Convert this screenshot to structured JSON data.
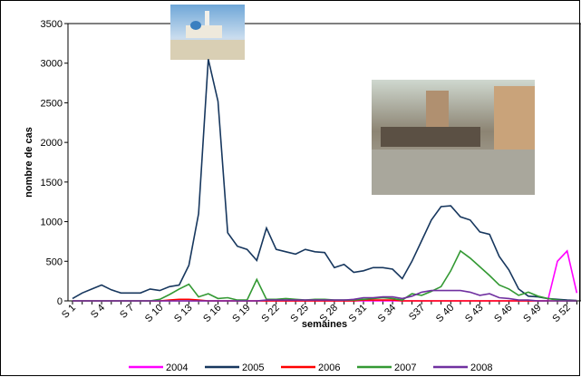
{
  "chart_data": {
    "type": "line",
    "y_label": "nombre de cas",
    "x_label": "semaines",
    "categories": [
      "S 1",
      null,
      null,
      "S 4",
      null,
      null,
      "S 7",
      null,
      null,
      "S 10",
      null,
      null,
      "S 13",
      null,
      null,
      "S 16",
      null,
      null,
      "S 19",
      null,
      null,
      "S 22",
      null,
      null,
      "S 25",
      null,
      null,
      "S 28",
      null,
      null,
      "S 31",
      null,
      null,
      "S 34",
      null,
      null,
      "S37",
      null,
      null,
      "S 40",
      null,
      null,
      "S 43",
      null,
      null,
      "S 46",
      null,
      null,
      "S 49",
      null,
      null,
      "S 52",
      null
    ],
    "ylim": [
      0,
      3500
    ],
    "yticks": [
      0,
      500,
      1000,
      1500,
      2000,
      2500,
      3000,
      3500
    ],
    "grid": false,
    "legend": "bottom",
    "series": [
      {
        "name": "2004",
        "color": "#ff00ff",
        "values": [
          0,
          0,
          0,
          0,
          0,
          0,
          0,
          0,
          0,
          0,
          0,
          0,
          0,
          0,
          0,
          0,
          0,
          0,
          0,
          0,
          0,
          0,
          0,
          0,
          0,
          0,
          0,
          0,
          0,
          0,
          0,
          0,
          0,
          0,
          0,
          0,
          0,
          0,
          0,
          0,
          0,
          0,
          0,
          0,
          0,
          0,
          0,
          0,
          0,
          0,
          500,
          630,
          100
        ]
      },
      {
        "name": "2005",
        "color": "#17375e",
        "values": [
          30,
          100,
          150,
          200,
          140,
          100,
          100,
          100,
          150,
          130,
          180,
          200,
          450,
          1100,
          3050,
          2520,
          860,
          690,
          650,
          510,
          920,
          650,
          620,
          590,
          650,
          620,
          610,
          420,
          460,
          360,
          380,
          420,
          420,
          400,
          280,
          500,
          760,
          1020,
          1190,
          1200,
          1060,
          1020,
          870,
          840,
          560,
          390,
          150,
          60,
          50,
          30,
          20,
          10,
          5
        ]
      },
      {
        "name": "2006",
        "color": "#ff0000",
        "values": [
          0,
          0,
          0,
          0,
          0,
          0,
          0,
          0,
          0,
          0,
          10,
          20,
          20,
          10,
          0,
          0,
          0,
          0,
          0,
          0,
          0,
          0,
          0,
          0,
          0,
          0,
          0,
          0,
          0,
          0,
          10,
          10,
          10,
          10,
          0,
          0,
          0,
          0,
          0,
          0,
          0,
          0,
          0,
          0,
          0,
          0,
          0,
          0,
          0,
          0,
          0,
          0,
          0
        ]
      },
      {
        "name": "2007",
        "color": "#339933",
        "values": [
          0,
          0,
          0,
          0,
          0,
          0,
          0,
          0,
          0,
          20,
          80,
          150,
          210,
          50,
          90,
          30,
          40,
          10,
          10,
          270,
          20,
          20,
          30,
          20,
          10,
          20,
          20,
          10,
          10,
          10,
          20,
          30,
          40,
          30,
          10,
          90,
          70,
          120,
          180,
          380,
          630,
          540,
          430,
          320,
          200,
          150,
          70,
          110,
          60,
          30,
          10,
          0,
          0
        ]
      },
      {
        "name": "2008",
        "color": "#7030a0",
        "values": [
          0,
          0,
          0,
          0,
          0,
          0,
          0,
          0,
          0,
          0,
          0,
          0,
          0,
          0,
          0,
          0,
          0,
          0,
          0,
          0,
          10,
          10,
          10,
          10,
          10,
          10,
          10,
          10,
          10,
          20,
          40,
          40,
          50,
          50,
          30,
          60,
          110,
          130,
          130,
          130,
          130,
          110,
          70,
          90,
          40,
          30,
          10,
          10,
          0,
          0,
          0,
          0,
          0
        ]
      }
    ]
  }
}
